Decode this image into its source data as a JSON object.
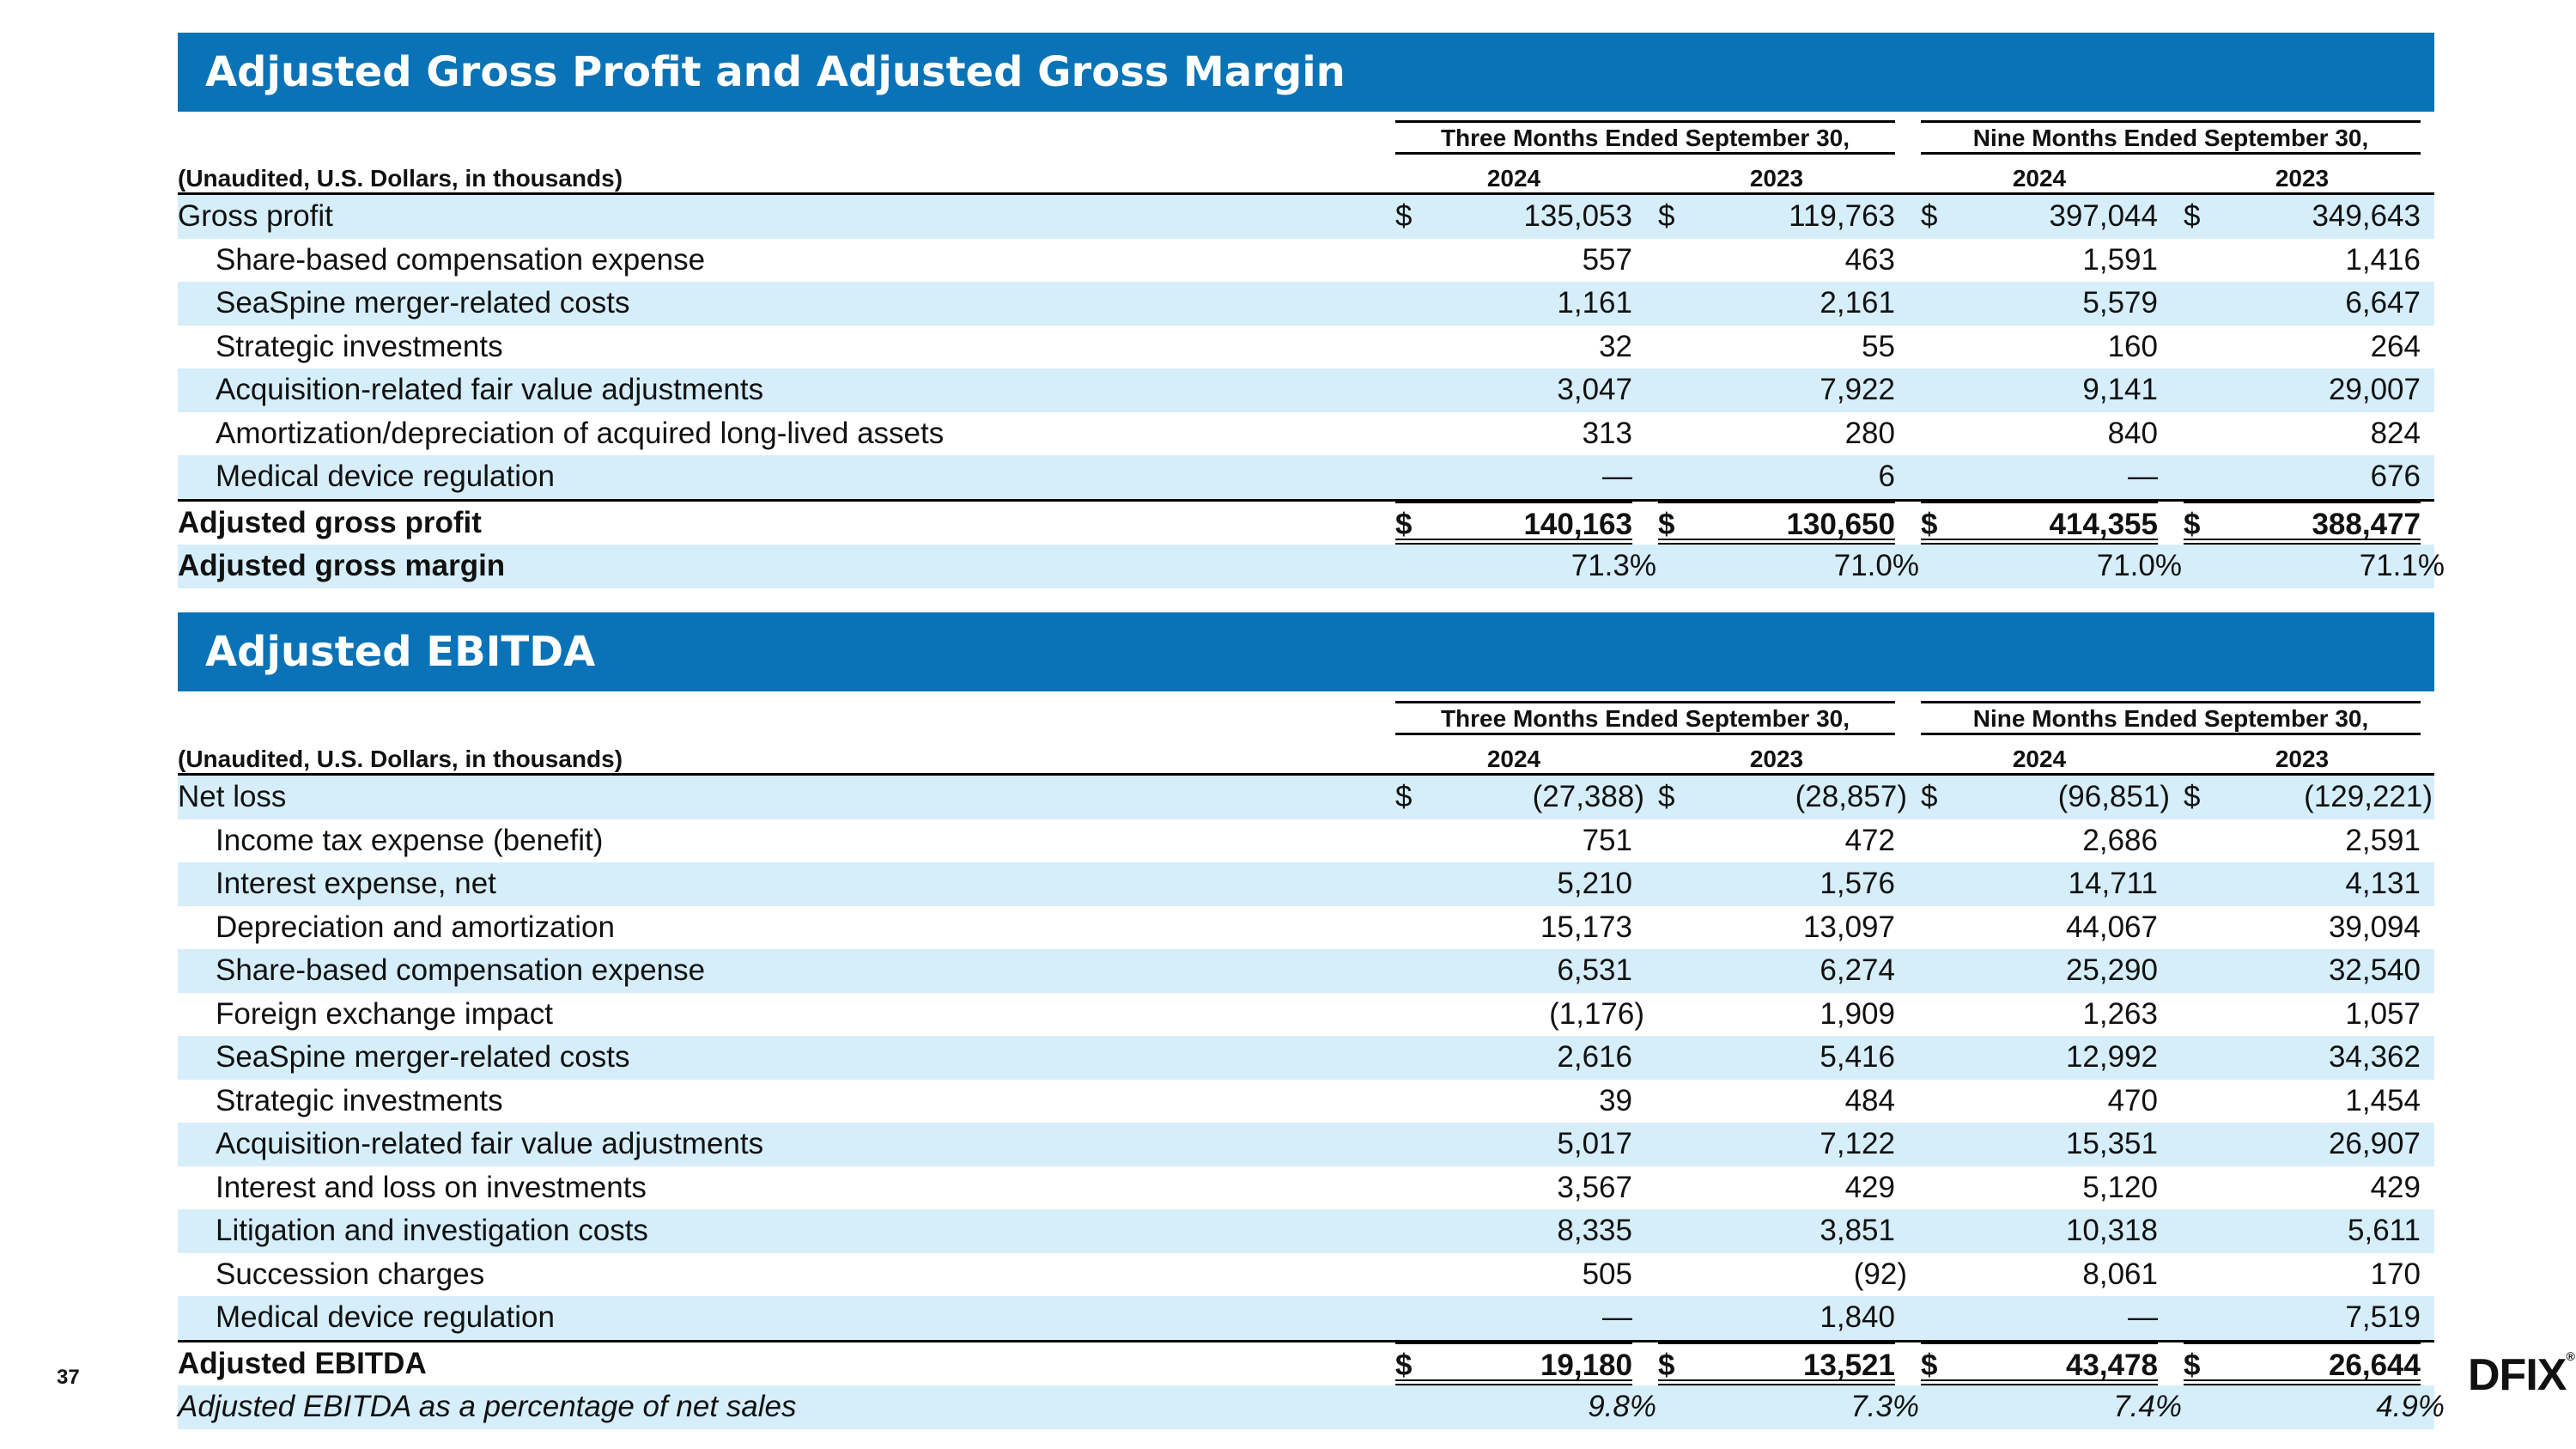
{
  "section1": {
    "title": "Adjusted Gross Profit and Adjusted Gross Margin",
    "group_headers": [
      "Three Months Ended September 30,",
      "Nine Months Ended September 30,"
    ],
    "units_label": "(Unaudited, U.S. Dollars, in thousands)",
    "years": [
      "2024",
      "2023",
      "2024",
      "2023"
    ],
    "rows": [
      {
        "label": "Gross profit",
        "values": [
          "135,053",
          "119,763",
          "397,044",
          "349,643"
        ],
        "currency": true
      },
      {
        "label": "Share-based compensation expense",
        "values": [
          "557",
          "463",
          "1,591",
          "1,416"
        ]
      },
      {
        "label": "SeaSpine merger-related costs",
        "values": [
          "1,161",
          "2,161",
          "5,579",
          "6,647"
        ]
      },
      {
        "label": "Strategic investments",
        "values": [
          "32",
          "55",
          "160",
          "264"
        ]
      },
      {
        "label": "Acquisition-related fair value adjustments",
        "values": [
          "3,047",
          "7,922",
          "9,141",
          "29,007"
        ]
      },
      {
        "label": "Amortization/depreciation of acquired long-lived assets",
        "values": [
          "313",
          "280",
          "840",
          "824"
        ]
      },
      {
        "label": "Medical device regulation",
        "values": [
          "—",
          "6",
          "—",
          "676"
        ]
      }
    ],
    "total": {
      "label": "Adjusted gross profit",
      "values": [
        "140,163",
        "130,650",
        "414,355",
        "388,477"
      ]
    },
    "margin": {
      "label": "Adjusted gross margin",
      "values": [
        "71.3%",
        "71.0%",
        "71.0%",
        "71.1%"
      ]
    }
  },
  "section2": {
    "title": "Adjusted EBITDA",
    "group_headers": [
      "Three Months Ended September 30,",
      "Nine Months Ended September 30,"
    ],
    "units_label": "(Unaudited, U.S. Dollars, in thousands)",
    "years": [
      "2024",
      "2023",
      "2024",
      "2023"
    ],
    "rows": [
      {
        "label": "Net loss",
        "values": [
          "(27,388)",
          "(28,857)",
          "(96,851)",
          "(129,221)"
        ],
        "currency": true
      },
      {
        "label": "Income tax expense (benefit)",
        "values": [
          "751",
          "472",
          "2,686",
          "2,591"
        ]
      },
      {
        "label": "Interest expense, net",
        "values": [
          "5,210",
          "1,576",
          "14,711",
          "4,131"
        ]
      },
      {
        "label": "Depreciation and amortization",
        "values": [
          "15,173",
          "13,097",
          "44,067",
          "39,094"
        ]
      },
      {
        "label": "Share-based compensation expense",
        "values": [
          "6,531",
          "6,274",
          "25,290",
          "32,540"
        ]
      },
      {
        "label": "Foreign exchange impact",
        "values": [
          "(1,176)",
          "1,909",
          "1,263",
          "1,057"
        ]
      },
      {
        "label": "SeaSpine merger-related costs",
        "values": [
          "2,616",
          "5,416",
          "12,992",
          "34,362"
        ]
      },
      {
        "label": "Strategic investments",
        "values": [
          "39",
          "484",
          "470",
          "1,454"
        ]
      },
      {
        "label": "Acquisition-related fair value adjustments",
        "values": [
          "5,017",
          "7,122",
          "15,351",
          "26,907"
        ]
      },
      {
        "label": "Interest and loss on investments",
        "values": [
          "3,567",
          "429",
          "5,120",
          "429"
        ]
      },
      {
        "label": "Litigation and investigation costs",
        "values": [
          "8,335",
          "3,851",
          "10,318",
          "5,611"
        ]
      },
      {
        "label": "Succession charges",
        "values": [
          "505",
          "(92)",
          "8,061",
          "170"
        ]
      },
      {
        "label": "Medical device regulation",
        "values": [
          "—",
          "1,840",
          "—",
          "7,519"
        ]
      }
    ],
    "total": {
      "label": "Adjusted EBITDA",
      "values": [
        "19,180",
        "13,521",
        "43,478",
        "26,644"
      ]
    },
    "margin": {
      "label": "Adjusted EBITDA as a percentage of net sales",
      "values": [
        "9.8%",
        "7.3%",
        "7.4%",
        "4.9%"
      ]
    }
  },
  "currency_symbol": "$",
  "page_number": "37",
  "logo_text": "DFIX",
  "logo_mark": "®",
  "colors": {
    "banner": "#0a73b7",
    "shade": "#d5eefa"
  }
}
